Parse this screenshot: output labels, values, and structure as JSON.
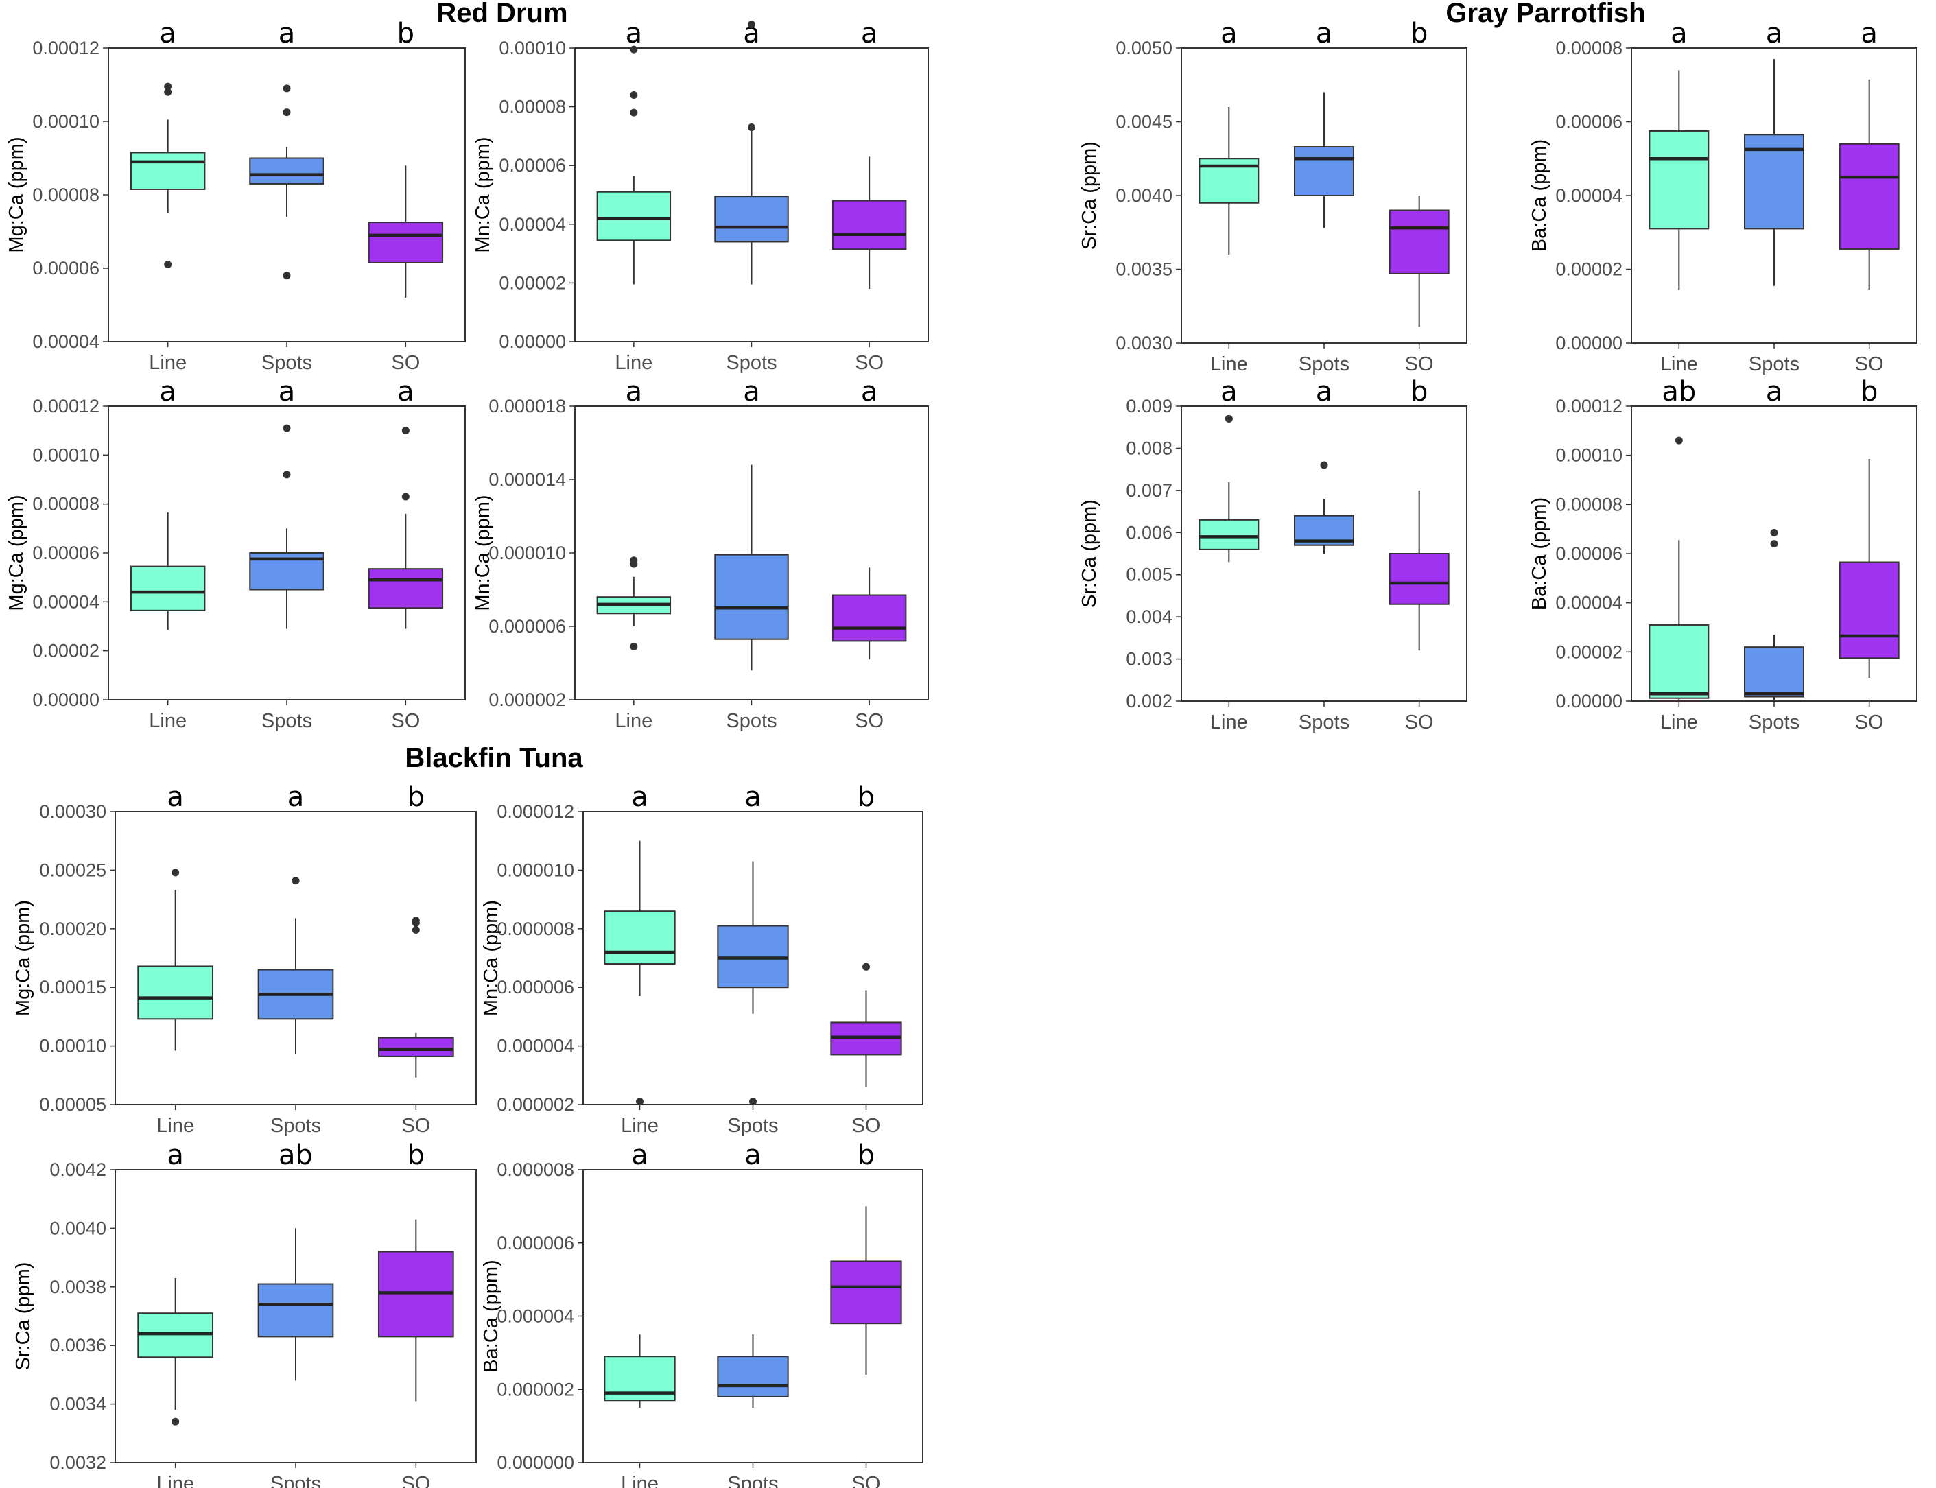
{
  "colors": {
    "Line": "#7fffd4",
    "Spots": "#6495ed",
    "SO": "#a033f0"
  },
  "chart_data": [
    {
      "type": "box",
      "group": "Red Drum",
      "title": "Red Drum",
      "ylabel": "Mg:Ca (ppm)",
      "categories": [
        "Line",
        "Spots",
        "SO"
      ],
      "ylim": [
        4e-05,
        0.00012
      ],
      "yticks": [
        "0.00004",
        "0.00006",
        "0.00008",
        "0.00010",
        "0.00012"
      ],
      "sig_letters": [
        "a",
        "a",
        "b"
      ],
      "boxes": [
        {
          "min": 7.5e-05,
          "q1": 8.15e-05,
          "median": 8.9e-05,
          "q3": 9.15e-05,
          "max": 0.0001005,
          "outliers": [
            6.1e-05,
            0.000108,
            0.0001095
          ]
        },
        {
          "min": 7.4e-05,
          "q1": 8.3e-05,
          "median": 8.55e-05,
          "q3": 9e-05,
          "max": 9.3e-05,
          "outliers": [
            5.8e-05,
            0.0001025,
            0.000109
          ]
        },
        {
          "min": 5.2e-05,
          "q1": 6.15e-05,
          "median": 6.9e-05,
          "q3": 7.25e-05,
          "max": 8.8e-05,
          "outliers": []
        }
      ]
    },
    {
      "type": "box",
      "group": "Red Drum",
      "ylabel": "Mn:Ca (ppm)",
      "categories": [
        "Line",
        "Spots",
        "SO"
      ],
      "ylim": [
        0,
        0.0001
      ],
      "yticks": [
        "0.00000",
        "0.00002",
        "0.00004",
        "0.00006",
        "0.00008",
        "0.00010"
      ],
      "sig_letters": [
        "a",
        "a",
        "a"
      ],
      "boxes": [
        {
          "min": 1.95e-05,
          "q1": 3.45e-05,
          "median": 4.2e-05,
          "q3": 5.1e-05,
          "max": 5.65e-05,
          "outliers": [
            7.8e-05,
            8.4e-05,
            9.95e-05
          ]
        },
        {
          "min": 1.95e-05,
          "q1": 3.4e-05,
          "median": 3.9e-05,
          "q3": 4.95e-05,
          "max": 7.3e-05,
          "outliers": [
            7.3e-05,
            0.000108
          ]
        },
        {
          "min": 1.8e-05,
          "q1": 3.15e-05,
          "median": 3.65e-05,
          "q3": 4.8e-05,
          "max": 6.3e-05,
          "outliers": []
        }
      ]
    },
    {
      "type": "box",
      "group": "Red Drum",
      "ylabel": "Sr:Ca (ppm)",
      "categories": [
        "Line",
        "Spots",
        "SO"
      ],
      "ylim": [
        0.003,
        0.005
      ],
      "yticks": [
        "0.0030",
        "0.0035",
        "0.0040",
        "0.0045",
        "0.0050"
      ],
      "sig_letters": [
        "a",
        "a",
        "b"
      ],
      "boxes": [
        {
          "min": 0.0036,
          "q1": 0.00395,
          "median": 0.0042,
          "q3": 0.00425,
          "max": 0.0046,
          "outliers": []
        },
        {
          "min": 0.00378,
          "q1": 0.004,
          "median": 0.00425,
          "q3": 0.00433,
          "max": 0.0047,
          "outliers": []
        },
        {
          "min": 0.00311,
          "q1": 0.00347,
          "median": 0.00378,
          "q3": 0.0039,
          "max": 0.004,
          "outliers": []
        }
      ]
    },
    {
      "type": "box",
      "group": "Red Drum",
      "ylabel": "Ba:Ca (ppm)",
      "categories": [
        "Line",
        "Spots",
        "SO"
      ],
      "ylim": [
        0,
        8e-05
      ],
      "yticks": [
        "0.00000",
        "0.00002",
        "0.00004",
        "0.00006",
        "0.00008"
      ],
      "sig_letters": [
        "a",
        "a",
        "a"
      ],
      "boxes": [
        {
          "min": 1.45e-05,
          "q1": 3.1e-05,
          "median": 5e-05,
          "q3": 5.75e-05,
          "max": 7.4e-05,
          "outliers": []
        },
        {
          "min": 1.55e-05,
          "q1": 3.1e-05,
          "median": 5.25e-05,
          "q3": 5.65e-05,
          "max": 7.7e-05,
          "outliers": []
        },
        {
          "min": 1.45e-05,
          "q1": 2.55e-05,
          "median": 4.5e-05,
          "q3": 5.4e-05,
          "max": 7.15e-05,
          "outliers": []
        }
      ]
    },
    {
      "type": "box",
      "group": "Gray Parrotfish",
      "title": "Gray Parrotfish",
      "ylabel": "Mg:Ca (ppm)",
      "categories": [
        "Line",
        "Spots",
        "SO"
      ],
      "ylim": [
        0,
        0.00012
      ],
      "yticks": [
        "0.00000",
        "0.00002",
        "0.00004",
        "0.00006",
        "0.00008",
        "0.00010",
        "0.00012"
      ],
      "sig_letters": [
        "a",
        "a",
        "a"
      ],
      "boxes": [
        {
          "min": 2.85e-05,
          "q1": 3.65e-05,
          "median": 4.4e-05,
          "q3": 5.45e-05,
          "max": 7.65e-05,
          "outliers": []
        },
        {
          "min": 2.9e-05,
          "q1": 4.5e-05,
          "median": 5.75e-05,
          "q3": 6e-05,
          "max": 7e-05,
          "outliers": [
            9.2e-05,
            0.000111
          ]
        },
        {
          "min": 2.9e-05,
          "q1": 3.75e-05,
          "median": 4.9e-05,
          "q3": 5.35e-05,
          "max": 7.6e-05,
          "outliers": [
            8.3e-05,
            0.00011
          ]
        }
      ]
    },
    {
      "type": "box",
      "group": "Gray Parrotfish",
      "ylabel": "Mn:Ca (ppm)",
      "categories": [
        "Line",
        "Spots",
        "SO"
      ],
      "ylim": [
        2e-06,
        1.8e-05
      ],
      "yticks": [
        "0.000002",
        "0.000006",
        "0.000010",
        "0.000014",
        "0.000018"
      ],
      "sig_letters": [
        "a",
        "a",
        "a"
      ],
      "boxes": [
        {
          "min": 6e-06,
          "q1": 6.7e-06,
          "median": 7.2e-06,
          "q3": 7.6e-06,
          "max": 8.7e-06,
          "outliers": [
            4.9e-06,
            9.4e-06,
            9.6e-06
          ]
        },
        {
          "min": 3.6e-06,
          "q1": 5.3e-06,
          "median": 7e-06,
          "q3": 9.9e-06,
          "max": 1.48e-05,
          "outliers": []
        },
        {
          "min": 4.2e-06,
          "q1": 5.2e-06,
          "median": 5.9e-06,
          "q3": 7.7e-06,
          "max": 9.2e-06,
          "outliers": []
        }
      ]
    },
    {
      "type": "box",
      "group": "Gray Parrotfish",
      "ylabel": "Sr:Ca (ppm)",
      "categories": [
        "Line",
        "Spots",
        "SO"
      ],
      "ylim": [
        0.002,
        0.009
      ],
      "yticks": [
        "0.002",
        "0.003",
        "0.004",
        "0.005",
        "0.006",
        "0.007",
        "0.008",
        "0.009"
      ],
      "sig_letters": [
        "a",
        "a",
        "b"
      ],
      "boxes": [
        {
          "min": 0.0053,
          "q1": 0.0056,
          "median": 0.0059,
          "q3": 0.0063,
          "max": 0.0072,
          "outliers": [
            0.0087
          ]
        },
        {
          "min": 0.0055,
          "q1": 0.0057,
          "median": 0.0058,
          "q3": 0.0064,
          "max": 0.0068,
          "outliers": [
            0.0076
          ]
        },
        {
          "min": 0.0032,
          "q1": 0.0043,
          "median": 0.0048,
          "q3": 0.0055,
          "max": 0.007,
          "outliers": []
        }
      ]
    },
    {
      "type": "box",
      "group": "Gray Parrotfish",
      "ylabel": "Ba:Ca (ppm)",
      "categories": [
        "Line",
        "Spots",
        "SO"
      ],
      "ylim": [
        0,
        0.00012
      ],
      "yticks": [
        "0.00000",
        "0.00002",
        "0.00004",
        "0.00006",
        "0.00008",
        "0.00010",
        "0.00012"
      ],
      "sig_letters": [
        "ab",
        "a",
        "b"
      ],
      "boxes": [
        {
          "min": 5e-07,
          "q1": 1.2e-06,
          "median": 3e-06,
          "q3": 3.1e-05,
          "max": 6.55e-05,
          "outliers": [
            0.000106
          ]
        },
        {
          "min": 5e-07,
          "q1": 1.8e-06,
          "median": 3e-06,
          "q3": 2.2e-05,
          "max": 2.7e-05,
          "outliers": [
            6.4e-05,
            6.85e-05
          ]
        },
        {
          "min": 9.5e-06,
          "q1": 1.75e-05,
          "median": 2.65e-05,
          "q3": 5.65e-05,
          "max": 9.85e-05,
          "outliers": []
        }
      ]
    },
    {
      "type": "box",
      "group": "Blackfin Tuna",
      "title": "Blackfin Tuna",
      "ylabel": "Mg:Ca (ppm)",
      "categories": [
        "Line",
        "Spots",
        "SO"
      ],
      "ylim": [
        5e-05,
        0.0003
      ],
      "yticks": [
        "0.00005",
        "0.00010",
        "0.00015",
        "0.00020",
        "0.00025",
        "0.00030"
      ],
      "sig_letters": [
        "a",
        "a",
        "b"
      ],
      "boxes": [
        {
          "min": 9.6e-05,
          "q1": 0.000123,
          "median": 0.000141,
          "q3": 0.000168,
          "max": 0.000233,
          "outliers": [
            0.000248
          ]
        },
        {
          "min": 9.3e-05,
          "q1": 0.000123,
          "median": 0.000144,
          "q3": 0.000165,
          "max": 0.000209,
          "outliers": [
            0.000241
          ]
        },
        {
          "min": 7.3e-05,
          "q1": 9.1e-05,
          "median": 9.7e-05,
          "q3": 0.000107,
          "max": 0.000111,
          "outliers": [
            0.000199,
            0.000205,
            0.000207
          ]
        }
      ]
    },
    {
      "type": "box",
      "group": "Blackfin Tuna",
      "ylabel": "Mn:Ca (ppm)",
      "categories": [
        "Line",
        "Spots",
        "SO"
      ],
      "ylim": [
        2e-06,
        1.2e-05
      ],
      "yticks": [
        "0.000002",
        "0.000004",
        "0.000006",
        "0.000008",
        "0.000010",
        "0.000012"
      ],
      "sig_letters": [
        "a",
        "a",
        "b"
      ],
      "boxes": [
        {
          "min": 5.7e-06,
          "q1": 6.8e-06,
          "median": 7.2e-06,
          "q3": 8.6e-06,
          "max": 1.1e-05,
          "outliers": [
            2.1e-06
          ]
        },
        {
          "min": 5.1e-06,
          "q1": 6e-06,
          "median": 7e-06,
          "q3": 8.1e-06,
          "max": 1.03e-05,
          "outliers": [
            2.1e-06
          ]
        },
        {
          "min": 2.6e-06,
          "q1": 3.7e-06,
          "median": 4.3e-06,
          "q3": 4.8e-06,
          "max": 5.9e-06,
          "outliers": [
            6.7e-06
          ]
        }
      ]
    },
    {
      "type": "box",
      "group": "Blackfin Tuna",
      "ylabel": "Sr:Ca (ppm)",
      "categories": [
        "Line",
        "Spots",
        "SO"
      ],
      "ylim": [
        0.0032,
        0.0042
      ],
      "yticks": [
        "0.0032",
        "0.0034",
        "0.0036",
        "0.0038",
        "0.0040",
        "0.0042"
      ],
      "sig_letters": [
        "a",
        "ab",
        "b"
      ],
      "boxes": [
        {
          "min": 0.00338,
          "q1": 0.00356,
          "median": 0.00364,
          "q3": 0.00371,
          "max": 0.00383,
          "outliers": [
            0.00334
          ]
        },
        {
          "min": 0.00348,
          "q1": 0.00363,
          "median": 0.00374,
          "q3": 0.00381,
          "max": 0.004,
          "outliers": []
        },
        {
          "min": 0.00341,
          "q1": 0.00363,
          "median": 0.00378,
          "q3": 0.00392,
          "max": 0.00403,
          "outliers": []
        }
      ]
    },
    {
      "type": "box",
      "group": "Blackfin Tuna",
      "ylabel": "Ba:Ca (ppm)",
      "categories": [
        "Line",
        "Spots",
        "SO"
      ],
      "ylim": [
        0,
        8e-06
      ],
      "yticks": [
        "0.000000",
        "0.000002",
        "0.000004",
        "0.000006",
        "0.000008"
      ],
      "sig_letters": [
        "a",
        "a",
        "b"
      ],
      "boxes": [
        {
          "min": 1.5e-06,
          "q1": 1.7e-06,
          "median": 1.9e-06,
          "q3": 2.9e-06,
          "max": 3.5e-06,
          "outliers": []
        },
        {
          "min": 1.5e-06,
          "q1": 1.8e-06,
          "median": 2.1e-06,
          "q3": 2.9e-06,
          "max": 3.5e-06,
          "outliers": []
        },
        {
          "min": 2.4e-06,
          "q1": 3.8e-06,
          "median": 4.8e-06,
          "q3": 5.5e-06,
          "max": 7e-06,
          "outliers": []
        }
      ]
    }
  ]
}
